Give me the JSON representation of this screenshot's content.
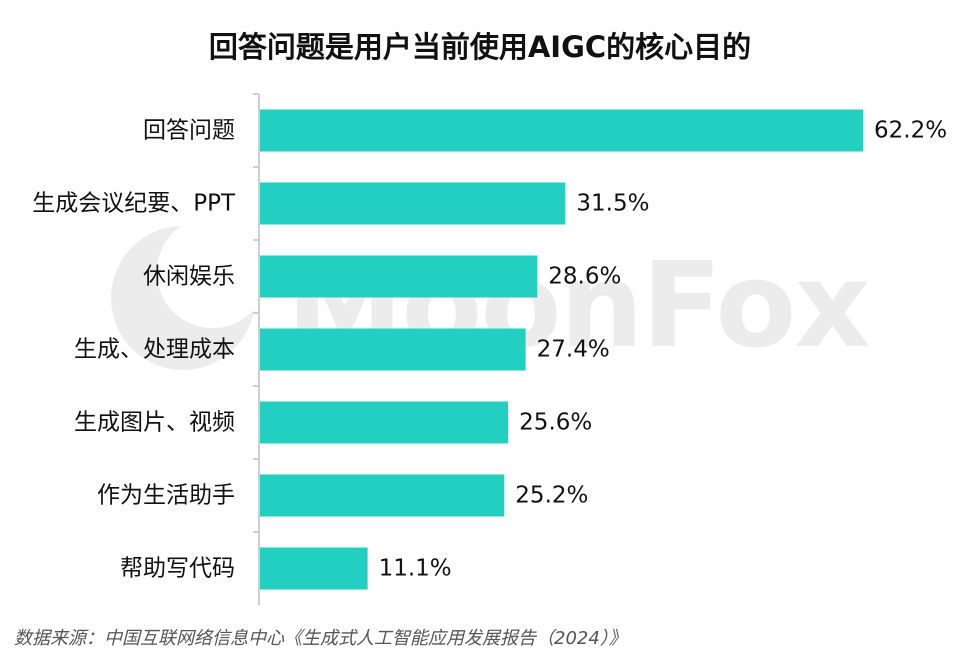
{
  "chart_data": {
    "type": "bar",
    "orientation": "horizontal",
    "title": "回答问题是用户当前使用AIGC的核心目的",
    "categories": [
      "回答问题",
      "生成会议纪要、PPT",
      "休闲娱乐",
      "生成、处理成本",
      "生成图片、视频",
      "作为生活助手",
      "帮助写代码"
    ],
    "values": [
      62.2,
      31.5,
      28.6,
      27.4,
      25.6,
      25.2,
      11.1
    ],
    "value_labels": [
      "62.2%",
      "31.5%",
      "28.6%",
      "27.4%",
      "25.6%",
      "25.2%",
      "11.1%"
    ],
    "unit": "%",
    "xlim": [
      0,
      62.2
    ],
    "grid": false,
    "bar_color": "#22cfc0"
  },
  "watermark": "MoonFox",
  "source": "数据来源：中国互联网络信息中心《生成式人工智能应用发展报告（2024）》"
}
